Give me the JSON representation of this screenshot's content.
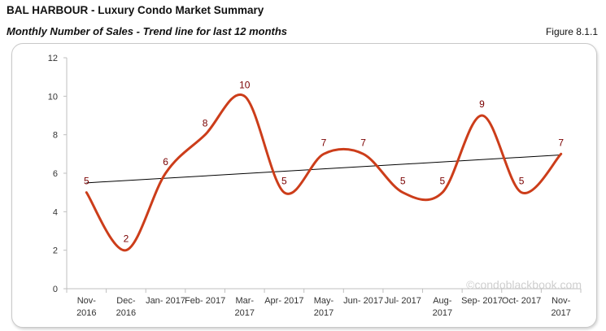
{
  "header": {
    "title": "BAL HARBOUR - Luxury Condo Market Summary",
    "subtitle": "Monthly Number of Sales - Trend line for last 12 months",
    "figure_label": "Figure 8.1.1"
  },
  "watermark": "©condoblackbook.com",
  "colors": {
    "series": "#cc3d1a",
    "trend": "#000000",
    "data_label": "#7a0000",
    "axis_text": "#333333",
    "axis_line": "#bfbfbf"
  },
  "chart_data": {
    "type": "line",
    "title": "Monthly Number of Sales - Trend line for last 12 months",
    "xlabel": "",
    "ylabel": "",
    "ylim": [
      0,
      12
    ],
    "yticks": [
      0,
      2,
      4,
      6,
      8,
      10,
      12
    ],
    "grid": false,
    "legend": "none",
    "categories": [
      [
        "Nov-",
        "2016"
      ],
      [
        "Dec-",
        "2016"
      ],
      [
        "Jan- 2017"
      ],
      [
        "Feb- 2017"
      ],
      [
        "Mar-",
        "2017"
      ],
      [
        "Apr- 2017"
      ],
      [
        "May-",
        "2017"
      ],
      [
        "Jun- 2017"
      ],
      [
        "Jul- 2017"
      ],
      [
        "Aug-",
        "2017"
      ],
      [
        "Sep- 2017"
      ],
      [
        "Oct- 2017"
      ],
      [
        "Nov-",
        "2017"
      ]
    ],
    "series": [
      {
        "name": "Monthly Number of Sales",
        "values": [
          5,
          2,
          6,
          8,
          10,
          5,
          7,
          7,
          5,
          5,
          9,
          5,
          7
        ],
        "smooth": true
      }
    ],
    "trend_line": {
      "name": "Linear trend",
      "start": 5.5,
      "end": 6.95
    }
  }
}
